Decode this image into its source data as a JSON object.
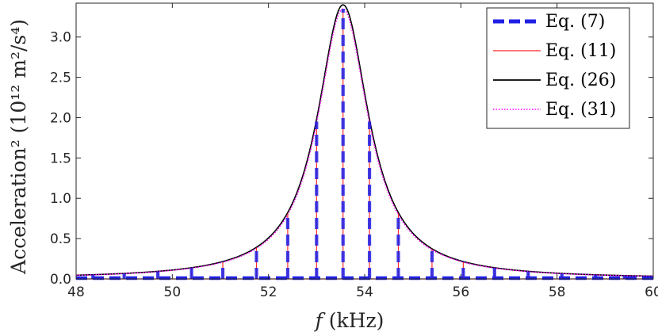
{
  "chart_data": {
    "type": "line",
    "xlabel_italic": "f",
    "xlabel_rest": " (kHz)",
    "ylabel": "Acceleration² (10¹² m²/s⁴)",
    "xlim": [
      48,
      60
    ],
    "ylim": [
      0,
      3.42
    ],
    "xticks": [
      "48",
      "50",
      "52",
      "54",
      "56",
      "58",
      "60"
    ],
    "yticks": [
      "0.0",
      "0.5",
      "1.0",
      "1.5",
      "2.0",
      "2.5",
      "3.0"
    ],
    "grid": false,
    "legend_position": "top-right",
    "resonance": {
      "f0": 53.55,
      "peak": 3.4,
      "half_width": 0.65,
      "baseline": 0.1
    },
    "spike_frequencies": [
      48.35,
      49.0,
      49.7,
      50.4,
      51.05,
      51.75,
      52.4,
      53.0,
      53.55,
      54.1,
      54.7,
      55.4,
      56.05,
      56.7,
      57.4,
      58.1,
      58.8,
      59.4
    ],
    "series": [
      {
        "name": "Eq. (7)",
        "color": "#1f1fe6",
        "style": "dashed-thick"
      },
      {
        "name": "Eq. (11)",
        "color": "#ff2a2a",
        "style": "solid-thin"
      },
      {
        "name": "Eq. (26)",
        "color": "#000000",
        "style": "solid"
      },
      {
        "name": "Eq. (31)",
        "color": "#ff00ff",
        "style": "dotted"
      }
    ]
  }
}
